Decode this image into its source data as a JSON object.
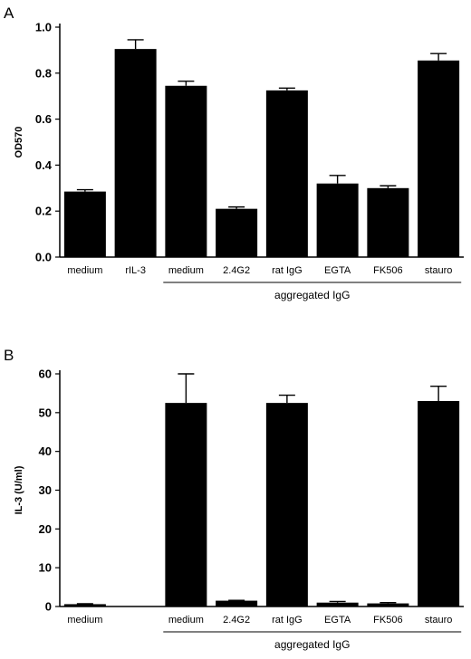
{
  "chart_data": [
    {
      "panel": "A",
      "type": "bar",
      "ylabel": "OD570",
      "ylim": [
        0,
        1.0
      ],
      "yticks": [
        "0.0",
        "0.2",
        "0.4",
        "0.6",
        "0.8",
        "1.0"
      ],
      "categories": [
        "medium",
        "rIL-3",
        "medium",
        "2.4G2",
        "rat IgG",
        "EGTA",
        "FK506",
        "stauro"
      ],
      "values": [
        0.285,
        0.905,
        0.745,
        0.21,
        0.725,
        0.32,
        0.3,
        0.855
      ],
      "errors": [
        0.008,
        0.04,
        0.02,
        0.008,
        0.01,
        0.035,
        0.01,
        0.03
      ],
      "group_label": "aggregated IgG",
      "group_start": 2,
      "group_end": 7
    },
    {
      "panel": "B",
      "type": "bar",
      "ylabel": "IL-3 (U/ml)",
      "ylim": [
        0,
        60
      ],
      "yticks": [
        "0",
        "10",
        "20",
        "30",
        "40",
        "50",
        "60"
      ],
      "categories": [
        "medium",
        "",
        "medium",
        "2.4G2",
        "rat IgG",
        "EGTA",
        "FK506",
        "stauro"
      ],
      "values": [
        0.6,
        null,
        52.5,
        1.5,
        52.5,
        1.0,
        0.8,
        53.0
      ],
      "errors": [
        0.1,
        null,
        7.5,
        0.1,
        2.0,
        0.3,
        0.2,
        3.8
      ],
      "group_label": "aggregated IgG",
      "group_start": 2,
      "group_end": 7
    }
  ]
}
